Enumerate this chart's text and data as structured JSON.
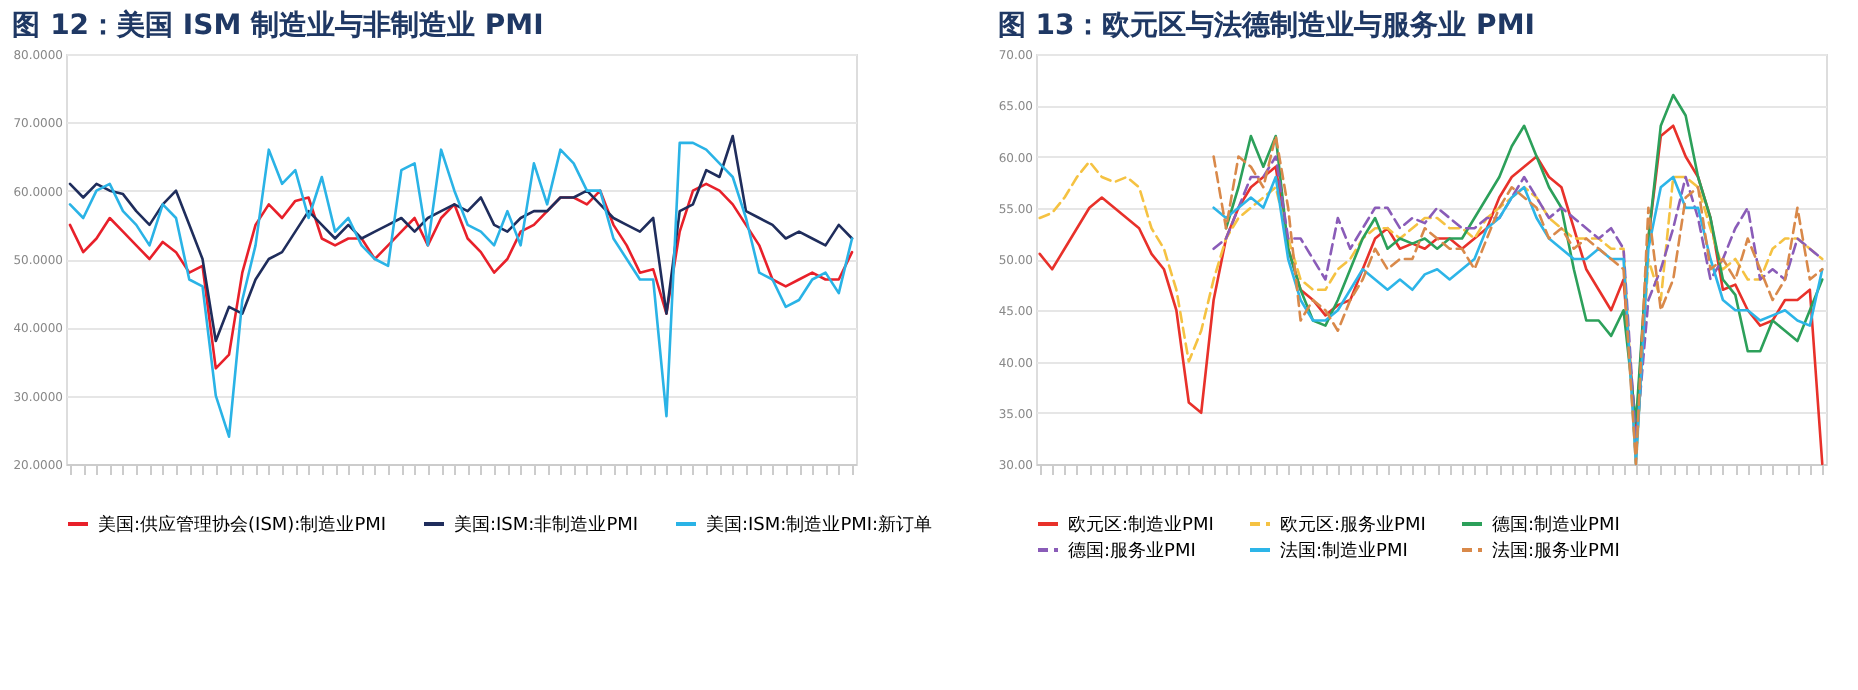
{
  "chart_data": [
    {
      "type": "line",
      "title": "图 12：美国 ISM 制造业与非制造业 PMI",
      "categories": [
        null,
        null,
        null,
        null,
        null,
        null,
        null,
        null,
        null,
        null,
        null,
        null,
        null,
        null,
        null,
        null,
        null,
        null,
        null,
        null,
        null,
        null,
        null,
        null,
        null,
        null,
        null,
        null,
        null,
        null,
        null,
        null,
        null,
        null,
        null,
        null,
        null,
        null,
        null,
        null,
        null,
        null,
        null,
        null,
        null,
        null,
        null,
        null,
        null,
        null,
        null,
        null,
        null,
        null,
        null,
        null,
        null,
        null,
        null,
        null
      ],
      "series": [
        {
          "name": "美国:供应管理协会(ISM):制造业PMI",
          "color": "#e8202a",
          "line_style": "solid",
          "values": [
            55,
            51,
            53,
            56,
            54,
            52,
            50,
            52.5,
            51,
            48,
            49,
            34,
            36,
            48,
            55,
            58,
            56,
            58.5,
            59,
            53,
            52,
            53,
            53,
            50,
            52,
            54,
            56,
            52,
            56,
            58,
            53,
            51,
            48,
            50,
            54,
            55,
            57,
            59,
            59,
            58,
            60,
            55,
            52,
            48,
            48.5,
            42,
            54,
            60,
            61,
            60,
            58,
            55,
            52,
            47,
            46,
            47,
            48,
            47,
            47,
            51
          ]
        },
        {
          "name": "美国:ISM:非制造业PMI",
          "color": "#1f2d5c",
          "line_style": "solid",
          "values": [
            61,
            59,
            61,
            60,
            59.5,
            57,
            55,
            58,
            60,
            55,
            50,
            38,
            43,
            42,
            47,
            50,
            51,
            54,
            57,
            55,
            53,
            55,
            53,
            54,
            55,
            56,
            54,
            56,
            57,
            58,
            57,
            59,
            55,
            54,
            56,
            57,
            57,
            59,
            59,
            60,
            58,
            56,
            55,
            54,
            56,
            42,
            57,
            58,
            63,
            62,
            68,
            57,
            56,
            55,
            53,
            54,
            53,
            52,
            55,
            53
          ]
        },
        {
          "name": "美国:ISM:制造业PMI:新订单",
          "color": "#2ab3e6",
          "line_style": "solid",
          "values": [
            58,
            56,
            60,
            61,
            57,
            55,
            52,
            58,
            56,
            47,
            46,
            30,
            24,
            44,
            52,
            66,
            61,
            63,
            56,
            62,
            54,
            56,
            52,
            50,
            49,
            63,
            64,
            52,
            66,
            60,
            55,
            54,
            52,
            57,
            52,
            64,
            58,
            66,
            64,
            60,
            60,
            53,
            50,
            47,
            47,
            27,
            67,
            67,
            66,
            64,
            62,
            56,
            48,
            47,
            43,
            44,
            47,
            48,
            45,
            53
          ]
        }
      ],
      "ylim": [
        20,
        80
      ],
      "yticks": [
        {
          "value": 20,
          "label": "20.0000"
        },
        {
          "value": 30,
          "label": "30.0000"
        },
        {
          "value": 40,
          "label": "40.0000"
        },
        {
          "value": 50,
          "label": "50.0000"
        },
        {
          "value": 60,
          "label": "60.0000"
        },
        {
          "value": 70,
          "label": "70.0000"
        },
        {
          "value": 80,
          "label": "80.0000"
        }
      ],
      "grid": "y",
      "legend": "bottom",
      "tick_labels": "y"
    },
    {
      "type": "line",
      "title": "图 13：欧元区与法德制造业与服务业 PMI",
      "categories": [
        null,
        null,
        null,
        null,
        null,
        null,
        null,
        null,
        null,
        null,
        null,
        null,
        null,
        null,
        null,
        null,
        null,
        null,
        null,
        null,
        null,
        null,
        null,
        null,
        null,
        null,
        null,
        null,
        null,
        null,
        null,
        null,
        null,
        null,
        null,
        null,
        null,
        null,
        null,
        null,
        null,
        null,
        null,
        null,
        null,
        null,
        null,
        null,
        null,
        null,
        null,
        null,
        null,
        null,
        null,
        null,
        null,
        null,
        null,
        null,
        null,
        null,
        null,
        null
      ],
      "series": [
        {
          "name": "欧元区:制造业PMI",
          "color": "#e8312a",
          "line_style": "solid",
          "values": [
            50.5,
            49,
            51,
            53,
            55,
            56,
            55,
            54,
            53,
            50.5,
            49,
            45,
            36,
            35,
            46,
            52,
            55,
            57,
            58,
            59,
            51,
            47,
            46,
            44.5,
            45.5,
            46,
            49,
            52,
            53,
            51,
            51.5,
            51,
            52,
            52,
            51,
            52,
            53,
            56,
            58,
            59,
            60,
            58,
            57,
            53,
            49,
            47,
            45,
            48,
            33,
            52,
            62,
            63,
            60,
            58,
            54,
            47,
            47.5,
            45,
            43.5,
            44,
            46,
            46,
            47,
            30
          ]
        },
        {
          "name": "欧元区:服务业PMI",
          "color": "#f5c242",
          "line_style": "dashed",
          "values": [
            54,
            54.5,
            56,
            58,
            59.5,
            58,
            57.5,
            58,
            57,
            53,
            51,
            47,
            40,
            43,
            48,
            52,
            54,
            55,
            56,
            57,
            52,
            48,
            47,
            47,
            49,
            50,
            52,
            53,
            53,
            52,
            53,
            54,
            54,
            53,
            53,
            52,
            54,
            55,
            56,
            57,
            56,
            54,
            53,
            52,
            52,
            52,
            51,
            51,
            30,
            50,
            46,
            58,
            58,
            57,
            53,
            49,
            50,
            48,
            48,
            51,
            52,
            52,
            51,
            50
          ]
        },
        {
          "name": "德国:制造业PMI",
          "color": "#2ca05a",
          "line_style": "solid",
          "values": [
            null,
            null,
            null,
            null,
            null,
            null,
            null,
            null,
            null,
            null,
            null,
            null,
            null,
            null,
            null,
            53,
            57,
            62,
            59,
            62,
            51,
            47,
            44,
            43.5,
            46,
            49,
            52,
            54,
            51,
            52,
            51.5,
            52,
            51,
            52,
            52,
            54,
            56,
            58,
            61,
            63,
            60,
            57,
            55,
            49,
            44,
            44,
            42.5,
            45,
            34,
            52,
            63,
            66,
            64,
            58,
            54,
            48,
            46.5,
            41,
            41,
            44,
            43,
            42,
            45,
            48
          ]
        },
        {
          "name": "德国:服务业PMI",
          "color": "#8a5cb8",
          "line_style": "dashed",
          "values": [
            null,
            null,
            null,
            null,
            null,
            null,
            null,
            null,
            null,
            null,
            null,
            null,
            null,
            null,
            51,
            52,
            55,
            58,
            58,
            60,
            52,
            52,
            50,
            48,
            54,
            51,
            53,
            55,
            55,
            53,
            54,
            53.5,
            55,
            54,
            53,
            53,
            54,
            54,
            56,
            58,
            56,
            54,
            55,
            54,
            53,
            52,
            53,
            51,
            32,
            46,
            49,
            53,
            58,
            54,
            48,
            50,
            53,
            55,
            48,
            49,
            48,
            52,
            51,
            50
          ]
        },
        {
          "name": "法国:制造业PMI",
          "color": "#2db5e8",
          "line_style": "solid",
          "values": [
            null,
            null,
            null,
            null,
            null,
            null,
            null,
            null,
            null,
            null,
            null,
            null,
            null,
            null,
            55,
            54,
            55,
            56,
            55,
            58,
            50,
            46,
            44,
            44,
            45,
            47,
            49,
            48,
            47,
            48,
            47,
            48.5,
            49,
            48,
            49,
            50,
            53,
            54,
            56,
            57,
            54,
            52,
            51,
            50,
            50,
            51,
            50,
            50,
            30,
            51,
            57,
            58,
            55,
            55,
            50,
            46,
            45,
            45,
            44,
            44.5,
            45,
            44,
            43.5,
            49
          ]
        },
        {
          "name": "法国:服务业PMI",
          "color": "#d9894a",
          "line_style": "dashed",
          "values": [
            null,
            null,
            null,
            null,
            null,
            null,
            null,
            null,
            null,
            null,
            null,
            null,
            null,
            null,
            60,
            53,
            60,
            59,
            57,
            62,
            55,
            44,
            46,
            45,
            43,
            46,
            48,
            51,
            49,
            50,
            50,
            53,
            52,
            51,
            51,
            49,
            52,
            55,
            57,
            56,
            55,
            52,
            53,
            51,
            52,
            51,
            50,
            49,
            30,
            55,
            45,
            48,
            56,
            57,
            49,
            50,
            48,
            52,
            49,
            46,
            48,
            55,
            48,
            49
          ]
        }
      ],
      "ylim": [
        30,
        70
      ],
      "yticks": [
        {
          "value": 30,
          "label": "30.00"
        },
        {
          "value": 35,
          "label": "35.00"
        },
        {
          "value": 40,
          "label": "40.00"
        },
        {
          "value": 45,
          "label": "45.00"
        },
        {
          "value": 50,
          "label": "50.00"
        },
        {
          "value": 55,
          "label": "55.00"
        },
        {
          "value": 60,
          "label": "60.00"
        },
        {
          "value": 65,
          "label": "65.00"
        },
        {
          "value": 70,
          "label": "70.00"
        }
      ],
      "grid": "y",
      "legend": "bottom",
      "tick_labels": "y"
    }
  ]
}
